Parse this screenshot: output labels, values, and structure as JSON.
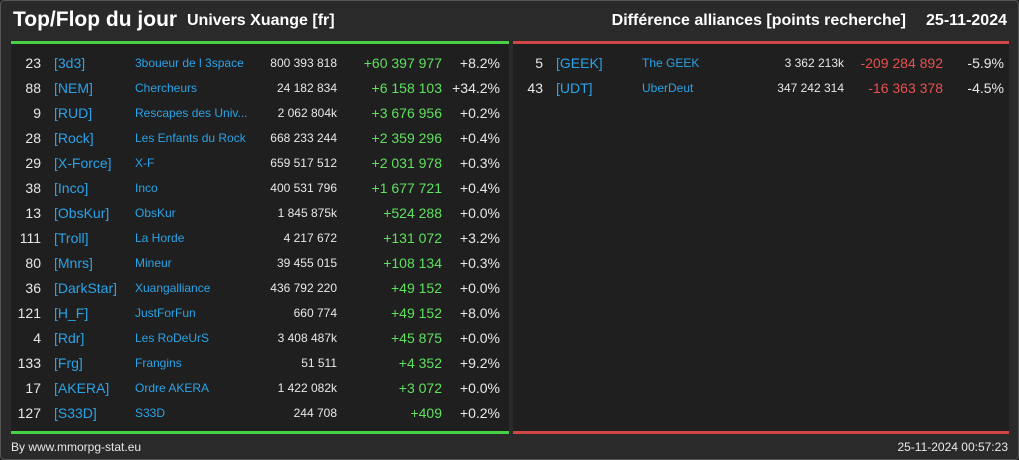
{
  "header": {
    "title": "Top/Flop du jour",
    "universe": "Univers Xuange [fr]",
    "subtitle": "Différence alliances [points recherche]",
    "date": "25-11-2024"
  },
  "top": [
    {
      "rank": "23",
      "tag": "[3d3]",
      "name": "3boueur de l 3space",
      "points": "800 393 818",
      "diff": "+60 397 977",
      "pct": "+8.2%"
    },
    {
      "rank": "88",
      "tag": "[NEM]",
      "name": "Chercheurs",
      "points": "24 182 834",
      "diff": "+6 158 103",
      "pct": "+34.2%"
    },
    {
      "rank": "9",
      "tag": "[RUD]",
      "name": "Rescapes des Univ...",
      "points": "2 062 804k",
      "diff": "+3 676 956",
      "pct": "+0.2%"
    },
    {
      "rank": "28",
      "tag": "[Rock]",
      "name": "Les Enfants du Rock",
      "points": "668 233 244",
      "diff": "+2 359 296",
      "pct": "+0.4%"
    },
    {
      "rank": "29",
      "tag": "[X-Force]",
      "name": "X-F",
      "points": "659 517 512",
      "diff": "+2 031 978",
      "pct": "+0.3%"
    },
    {
      "rank": "38",
      "tag": "[Inco]",
      "name": "Inco",
      "points": "400 531 796",
      "diff": "+1 677 721",
      "pct": "+0.4%"
    },
    {
      "rank": "13",
      "tag": "[ObsKur]",
      "name": "ObsKur",
      "points": "1 845 875k",
      "diff": "+524 288",
      "pct": "+0.0%"
    },
    {
      "rank": "111",
      "tag": "[Troll]",
      "name": "La Horde",
      "points": "4 217 672",
      "diff": "+131 072",
      "pct": "+3.2%"
    },
    {
      "rank": "80",
      "tag": "[Mnrs]",
      "name": "Mineur",
      "points": "39 455 015",
      "diff": "+108 134",
      "pct": "+0.3%"
    },
    {
      "rank": "36",
      "tag": "[DarkStar]",
      "name": "Xuangalliance",
      "points": "436 792 220",
      "diff": "+49 152",
      "pct": "+0.0%"
    },
    {
      "rank": "121",
      "tag": "[H_F]",
      "name": "JustForFun",
      "points": "660 774",
      "diff": "+49 152",
      "pct": "+8.0%"
    },
    {
      "rank": "4",
      "tag": "[Rdr]",
      "name": "Les RoDeUrS",
      "points": "3 408 487k",
      "diff": "+45 875",
      "pct": "+0.0%"
    },
    {
      "rank": "133",
      "tag": "[Frg]",
      "name": "Frangins",
      "points": "51 511",
      "diff": "+4 352",
      "pct": "+9.2%"
    },
    {
      "rank": "17",
      "tag": "[AKERA]",
      "name": "Ordre AKERA",
      "points": "1 422 082k",
      "diff": "+3 072",
      "pct": "+0.0%"
    },
    {
      "rank": "127",
      "tag": "[S33D]",
      "name": "S33D",
      "points": "244 708",
      "diff": "+409",
      "pct": "+0.2%"
    }
  ],
  "flop": [
    {
      "rank": "5",
      "tag": "[GEEK]",
      "name": "The GEEK",
      "points": "3 362 213k",
      "diff": "-209 284 892",
      "pct": "-5.9%"
    },
    {
      "rank": "43",
      "tag": "[UDT]",
      "name": "UberDeut",
      "points": "347 242 314",
      "diff": "-16 363 378",
      "pct": "-4.5%"
    }
  ],
  "footer": {
    "credit": "By www.mmorpg-stat.eu",
    "timestamp": "25-11-2024 00:57:23"
  },
  "colors": {
    "positive": "#5fe05f",
    "negative": "#e85050",
    "tag": "#2aa3e8",
    "top_border": "#46d046",
    "flop_border": "#d04646"
  }
}
